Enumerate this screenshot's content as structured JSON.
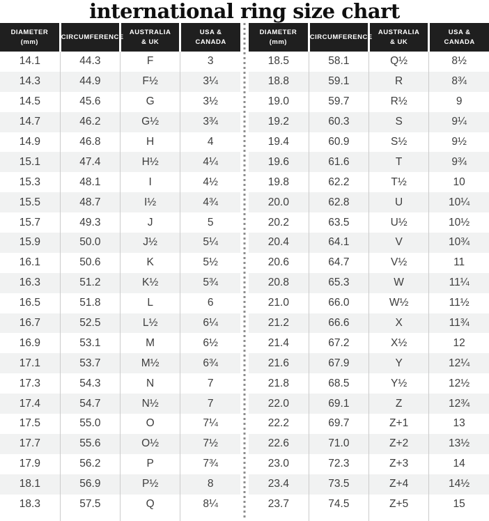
{
  "title": "international ring size chart",
  "columns_display": [
    "DIAMETER\n(mm)",
    "CIRCUMFERENCE",
    "AUSTRALIA\n& UK",
    "USA &\nCANADA"
  ],
  "colors": {
    "header_bg": "#1f1f1f",
    "header_text": "#ffffff",
    "row_text": "#3d3d3d",
    "stripe_bg": "#f1f2f2",
    "column_line": "#cbcbcb",
    "dotted_divider": "#8c8c8c",
    "title_color": "#0f0f0f"
  },
  "chart_data": {
    "type": "table",
    "title": "international ring size chart",
    "columns": [
      "Diameter (mm)",
      "Circumference",
      "Australia & UK",
      "USA & Canada"
    ],
    "tables": [
      {
        "name": "left",
        "rows": [
          [
            "14.1",
            "44.3",
            "F",
            "3"
          ],
          [
            "14.3",
            "44.9",
            "F½",
            "3¼"
          ],
          [
            "14.5",
            "45.6",
            "G",
            "3½"
          ],
          [
            "14.7",
            "46.2",
            "G½",
            "3¾"
          ],
          [
            "14.9",
            "46.8",
            "H",
            "4"
          ],
          [
            "15.1",
            "47.4",
            "H½",
            "4¼"
          ],
          [
            "15.3",
            "48.1",
            "I",
            "4½"
          ],
          [
            "15.5",
            "48.7",
            "I½",
            "4¾"
          ],
          [
            "15.7",
            "49.3",
            "J",
            "5"
          ],
          [
            "15.9",
            "50.0",
            "J½",
            "5¼"
          ],
          [
            "16.1",
            "50.6",
            "K",
            "5½"
          ],
          [
            "16.3",
            "51.2",
            "K½",
            "5¾"
          ],
          [
            "16.5",
            "51.8",
            "L",
            "6"
          ],
          [
            "16.7",
            "52.5",
            "L½",
            "6¼"
          ],
          [
            "16.9",
            "53.1",
            "M",
            "6½"
          ],
          [
            "17.1",
            "53.7",
            "M½",
            "6¾"
          ],
          [
            "17.3",
            "54.3",
            "N",
            "7"
          ],
          [
            "17.4",
            "54.7",
            "N½",
            "7"
          ],
          [
            "17.5",
            "55.0",
            "O",
            "7¼"
          ],
          [
            "17.7",
            "55.6",
            "O½",
            "7½"
          ],
          [
            "17.9",
            "56.2",
            "P",
            "7¾"
          ],
          [
            "18.1",
            "56.9",
            "P½",
            "8"
          ],
          [
            "18.3",
            "57.5",
            "Q",
            "8¼"
          ]
        ]
      },
      {
        "name": "right",
        "rows": [
          [
            "18.5",
            "58.1",
            "Q½",
            "8½"
          ],
          [
            "18.8",
            "59.1",
            "R",
            "8¾"
          ],
          [
            "19.0",
            "59.7",
            "R½",
            "9"
          ],
          [
            "19.2",
            "60.3",
            "S",
            "9¼"
          ],
          [
            "19.4",
            "60.9",
            "S½",
            "9½"
          ],
          [
            "19.6",
            "61.6",
            "T",
            "9¾"
          ],
          [
            "19.8",
            "62.2",
            "T½",
            "10"
          ],
          [
            "20.0",
            "62.8",
            "U",
            "10¼"
          ],
          [
            "20.2",
            "63.5",
            "U½",
            "10½"
          ],
          [
            "20.4",
            "64.1",
            "V",
            "10¾"
          ],
          [
            "20.6",
            "64.7",
            "V½",
            "11"
          ],
          [
            "20.8",
            "65.3",
            "W",
            "11¼"
          ],
          [
            "21.0",
            "66.0",
            "W½",
            "11½"
          ],
          [
            "21.2",
            "66.6",
            "X",
            "11¾"
          ],
          [
            "21.4",
            "67.2",
            "X½",
            "12"
          ],
          [
            "21.6",
            "67.9",
            "Y",
            "12¼"
          ],
          [
            "21.8",
            "68.5",
            "Y½",
            "12½"
          ],
          [
            "22.0",
            "69.1",
            "Z",
            "12¾"
          ],
          [
            "22.2",
            "69.7",
            "Z+1",
            "13"
          ],
          [
            "22.6",
            "71.0",
            "Z+2",
            "13½"
          ],
          [
            "23.0",
            "72.3",
            "Z+3",
            "14"
          ],
          [
            "23.4",
            "73.5",
            "Z+4",
            "14½"
          ],
          [
            "23.7",
            "74.5",
            "Z+5",
            "15"
          ]
        ]
      }
    ]
  }
}
